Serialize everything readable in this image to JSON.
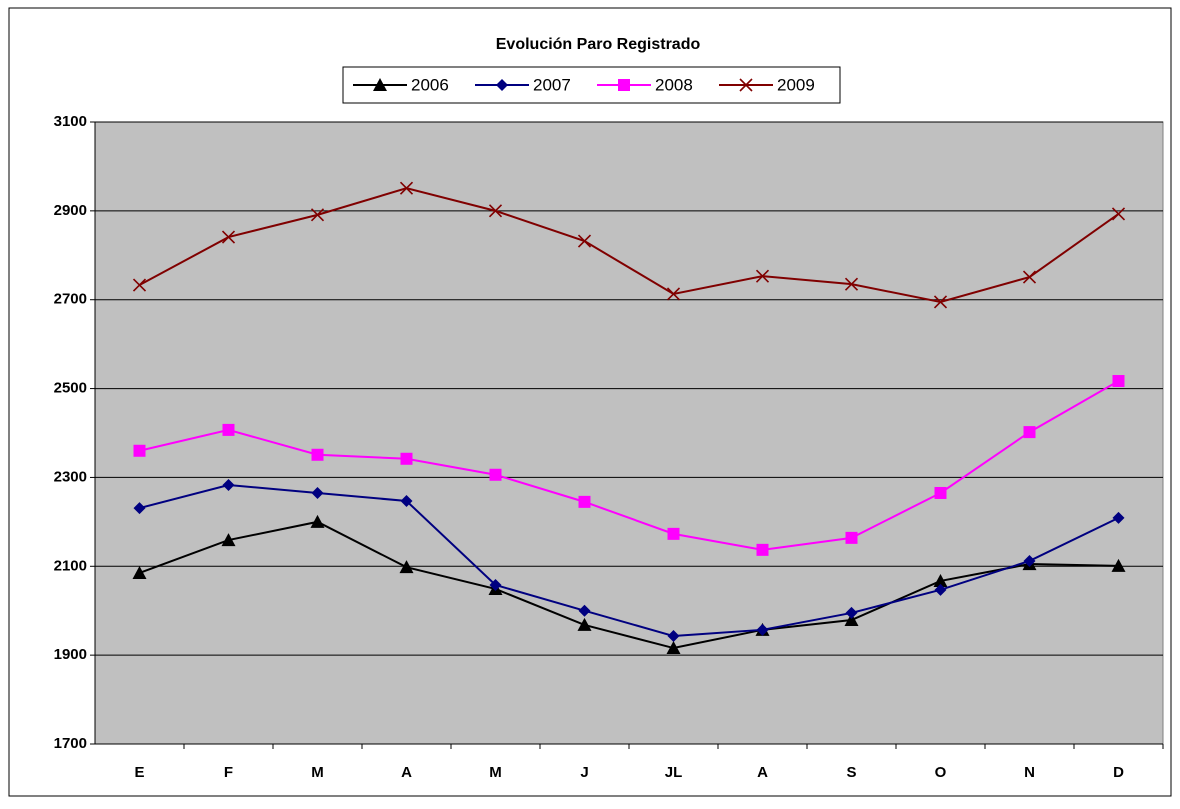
{
  "chart_data": {
    "type": "line",
    "title": "Evolución Paro Registrado",
    "categories": [
      "E",
      "F",
      "M",
      "A",
      "M",
      "J",
      "JL",
      "A",
      "S",
      "O",
      "N",
      "D"
    ],
    "series": [
      {
        "name": "2006",
        "color": "#000000",
        "marker": "triangle",
        "values": [
          2085,
          2159,
          2200,
          2098,
          2049,
          1968,
          1916,
          1957,
          1979,
          2067,
          2105,
          2101
        ]
      },
      {
        "name": "2007",
        "color": "#000080",
        "marker": "diamond",
        "values": [
          2231,
          2283,
          2265,
          2247,
          2058,
          2000,
          1943,
          1957,
          1995,
          2047,
          2112,
          2209
        ]
      },
      {
        "name": "2008",
        "color": "#ff00ff",
        "marker": "square",
        "values": [
          2360,
          2407,
          2351,
          2342,
          2306,
          2245,
          2173,
          2137,
          2164,
          2265,
          2402,
          2517
        ]
      },
      {
        "name": "2009",
        "color": "#800000",
        "marker": "x",
        "values": [
          2733,
          2841,
          2891,
          2951,
          2900,
          2832,
          2713,
          2753,
          2735,
          2695,
          2751,
          2893
        ]
      }
    ],
    "ylim": [
      1700,
      3100
    ],
    "yticks": [
      1700,
      1900,
      2100,
      2300,
      2500,
      2700,
      2900,
      3100
    ],
    "grid": true,
    "legend": "top"
  }
}
